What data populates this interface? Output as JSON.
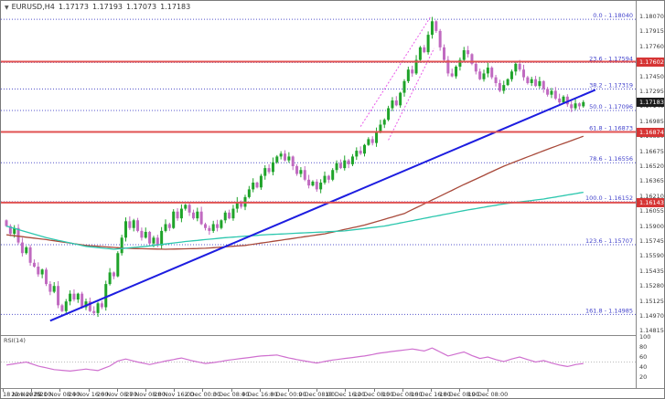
{
  "header": {
    "collapse_icon": "▼",
    "symbol": "EURUSD,H4",
    "open": "1.17173",
    "high": "1.17193",
    "low": "1.17073",
    "close": "1.17183"
  },
  "price_axis": {
    "ticks": [
      "1.18070",
      "1.17915",
      "1.17760",
      "1.17605",
      "1.17450",
      "1.17295",
      "1.17140",
      "1.16985",
      "1.16830",
      "1.16675",
      "1.16520",
      "1.16365",
      "1.16210",
      "1.16055",
      "1.15900",
      "1.15745",
      "1.15590",
      "1.15435",
      "1.15280",
      "1.15125",
      "1.14970",
      "1.14815"
    ],
    "badges": [
      {
        "text": "1.17602",
        "color": "#d63535"
      },
      {
        "text": "1.16874",
        "color": "#d63535"
      },
      {
        "text": "1.16143",
        "color": "#d63535"
      },
      {
        "text": "1.17183",
        "color": "#1c1c1c"
      }
    ]
  },
  "time_axis": {
    "labels": [
      "18 Nov 2025",
      "20 Nov 08:00",
      "21 Nov 08:00",
      "24 Nov 16:00",
      "26 Nov 08:00",
      "27 Nov 08:00",
      "28 Nov 16:00",
      "2 Dec 00:00",
      "3 Dec 08:00",
      "4 Dec 16:00",
      "8 Dec 00:00",
      "9 Dec 08:00",
      "10 Dec 16:00",
      "12 Dec 08:00",
      "15 Dec 08:00",
      "16 Dec 16:00",
      "18 Dec 08:00",
      "19 Dec 08:00"
    ]
  },
  "rsi_panel": {
    "label": "RSI(14)",
    "axis_ticks": [
      100,
      80,
      60,
      40,
      20
    ],
    "level": 50
  },
  "chart_data": {
    "type": "candlestick",
    "title": "EURUSD H4 candlestick chart with Fibonacci retracement, support/resistance lines, moving averages and RSI sub-panel",
    "symbol": "EURUSD",
    "timeframe": "H4",
    "current_bid": 1.17183,
    "price_axis_range": {
      "top": 1.1807,
      "bottom": 1.14815
    },
    "closes": [
      1.159,
      1.1582,
      1.1588,
      1.1573,
      1.1562,
      1.1568,
      1.1552,
      1.1548,
      1.154,
      1.1545,
      1.153,
      1.1522,
      1.1528,
      1.1508,
      1.1502,
      1.1512,
      1.152,
      1.1514,
      1.152,
      1.1506,
      1.1512,
      1.1502,
      1.15,
      1.151,
      1.1506,
      1.153,
      1.1542,
      1.1538,
      1.1562,
      1.1578,
      1.1595,
      1.1588,
      1.1596,
      1.1585,
      1.1578,
      1.1584,
      1.1572,
      1.1578,
      1.157,
      1.1585,
      1.1592,
      1.1588,
      1.1605,
      1.1598,
      1.1608,
      1.1612,
      1.1604,
      1.1598,
      1.1605,
      1.1592,
      1.1588,
      1.1585,
      1.1592,
      1.1588,
      1.1596,
      1.1604,
      1.1598,
      1.1608,
      1.1615,
      1.161,
      1.162,
      1.1628,
      1.1635,
      1.163,
      1.1642,
      1.165,
      1.1646,
      1.1656,
      1.1662,
      1.1665,
      1.1658,
      1.1662,
      1.1652,
      1.1644,
      1.1648,
      1.1638,
      1.1632,
      1.1636,
      1.1628,
      1.1635,
      1.1642,
      1.1638,
      1.1648,
      1.1655,
      1.165,
      1.1658,
      1.1654,
      1.1662,
      1.1668,
      1.1665,
      1.1674,
      1.168,
      1.1676,
      1.1688,
      1.1695,
      1.17,
      1.1712,
      1.172,
      1.1715,
      1.1728,
      1.174,
      1.1752,
      1.1748,
      1.1762,
      1.1775,
      1.177,
      1.1788,
      1.1802,
      1.1792,
      1.1775,
      1.1762,
      1.1748,
      1.1745,
      1.1755,
      1.1762,
      1.1772,
      1.1768,
      1.1758,
      1.175,
      1.1742,
      1.1748,
      1.1754,
      1.1744,
      1.1738,
      1.173,
      1.1736,
      1.1742,
      1.175,
      1.1758,
      1.1752,
      1.1744,
      1.1738,
      1.1742,
      1.1735,
      1.174,
      1.1732,
      1.1726,
      1.173,
      1.1722,
      1.1718,
      1.1724,
      1.1716,
      1.1712,
      1.1717,
      1.1714,
      1.17183
    ],
    "horizontal_lines": [
      {
        "price": 1.17602,
        "color": "#e05252"
      },
      {
        "price": 1.16874,
        "color": "#e05252"
      },
      {
        "price": 1.16143,
        "color": "#e05252"
      }
    ],
    "fibonacci": [
      {
        "label": "0.0 - 1.18040",
        "price": 1.1804
      },
      {
        "label": "23.6 - 1.17594",
        "price": 1.17594
      },
      {
        "label": "38.2 - 1.17319",
        "price": 1.17319
      },
      {
        "label": "50.0 - 1.17096",
        "price": 1.17096
      },
      {
        "label": "61.8 - 1.16873",
        "price": 1.16873
      },
      {
        "label": "78.6 - 1.16556",
        "price": 1.16556
      },
      {
        "label": "100.0 - 1.16152",
        "price": 1.16152
      },
      {
        "label": "123.6 - 1.15707",
        "price": 1.15707
      },
      {
        "label": "161.8 - 1.14985",
        "price": 1.14985
      }
    ],
    "moving_averages": [
      {
        "name": "slow-ma",
        "color": "#a8493a",
        "points": [
          [
            0,
            1.1581
          ],
          [
            10,
            1.1576
          ],
          [
            20,
            1.157
          ],
          [
            30,
            1.1567
          ],
          [
            40,
            1.1566
          ],
          [
            50,
            1.1567
          ],
          [
            60,
            1.157
          ],
          [
            70,
            1.1576
          ],
          [
            80,
            1.1582
          ],
          [
            90,
            1.1591
          ],
          [
            100,
            1.1603
          ],
          [
            107,
            1.1617
          ],
          [
            115,
            1.1633
          ],
          [
            125,
            1.1652
          ],
          [
            135,
            1.1668
          ],
          [
            145,
            1.1683
          ]
        ]
      },
      {
        "name": "fast-ma",
        "color": "#2cc7ae",
        "points": [
          [
            0,
            1.159
          ],
          [
            10,
            1.1578
          ],
          [
            20,
            1.1569
          ],
          [
            27,
            1.1566
          ],
          [
            35,
            1.1569
          ],
          [
            45,
            1.1574
          ],
          [
            55,
            1.1578
          ],
          [
            65,
            1.1581
          ],
          [
            75,
            1.1583
          ],
          [
            85,
            1.1585
          ],
          [
            95,
            1.159
          ],
          [
            105,
            1.1598
          ],
          [
            115,
            1.1606
          ],
          [
            125,
            1.1613
          ],
          [
            135,
            1.1618
          ],
          [
            145,
            1.1625
          ]
        ]
      }
    ],
    "trendline": {
      "color": "#1d1de0",
      "from": [
        11,
        1.1492
      ],
      "to": [
        148,
        1.1731
      ]
    },
    "wedge_lines": [
      {
        "color": "#e95ae9",
        "from": [
          89,
          1.1693
        ],
        "to": [
          106.5,
          1.1806
        ]
      },
      {
        "color": "#e95ae9",
        "from": [
          96,
          1.1679
        ],
        "to": [
          107.5,
          1.1774
        ]
      }
    ],
    "rsi": {
      "color": "#cf6fcf",
      "range": [
        0,
        100
      ],
      "points": [
        [
          0,
          44
        ],
        [
          5,
          50
        ],
        [
          8,
          42
        ],
        [
          12,
          35
        ],
        [
          16,
          32
        ],
        [
          20,
          36
        ],
        [
          23,
          33
        ],
        [
          26,
          42
        ],
        [
          28,
          52
        ],
        [
          30,
          56
        ],
        [
          33,
          50
        ],
        [
          36,
          45
        ],
        [
          40,
          52
        ],
        [
          44,
          58
        ],
        [
          47,
          52
        ],
        [
          50,
          47
        ],
        [
          53,
          50
        ],
        [
          56,
          54
        ],
        [
          60,
          58
        ],
        [
          64,
          62
        ],
        [
          68,
          64
        ],
        [
          71,
          58
        ],
        [
          75,
          52
        ],
        [
          78,
          48
        ],
        [
          82,
          54
        ],
        [
          86,
          58
        ],
        [
          90,
          62
        ],
        [
          94,
          68
        ],
        [
          98,
          72
        ],
        [
          102,
          76
        ],
        [
          105,
          72
        ],
        [
          107,
          78
        ],
        [
          109,
          70
        ],
        [
          111,
          62
        ],
        [
          113,
          66
        ],
        [
          115,
          70
        ],
        [
          117,
          63
        ],
        [
          119,
          57
        ],
        [
          121,
          60
        ],
        [
          123,
          55
        ],
        [
          125,
          51
        ],
        [
          127,
          56
        ],
        [
          129,
          60
        ],
        [
          131,
          55
        ],
        [
          133,
          50
        ],
        [
          135,
          53
        ],
        [
          137,
          48
        ],
        [
          139,
          44
        ],
        [
          141,
          41
        ],
        [
          143,
          45
        ],
        [
          145,
          47
        ]
      ]
    },
    "colors": {
      "bull": "#1fa32a",
      "bear": "#c06ac0"
    }
  }
}
